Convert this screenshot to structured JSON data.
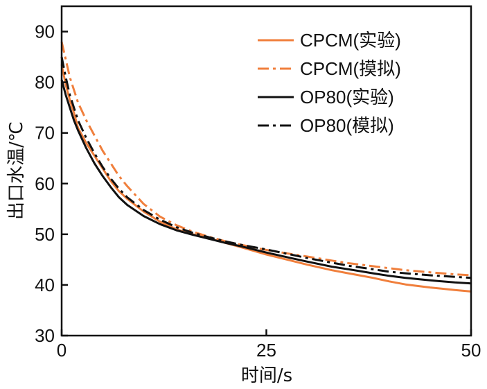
{
  "chart_data": {
    "type": "line",
    "title": "",
    "xlabel": "时间/s",
    "ylabel": "出口水温/℃",
    "xlim": [
      0,
      50
    ],
    "ylim": [
      30,
      95
    ],
    "xticks": [
      0,
      25,
      50
    ],
    "yticks": [
      30,
      40,
      50,
      60,
      70,
      80,
      90
    ],
    "xtick_labels": [
      "0",
      "25",
      "50"
    ],
    "ytick_labels": [
      "30",
      "40",
      "50",
      "60",
      "70",
      "80",
      "90"
    ],
    "legend_position": "top-right",
    "colors": {
      "orange": "#f07f3c",
      "black": "#111111"
    },
    "series": [
      {
        "name": "CPCM(实验)",
        "color": "#f07f3c",
        "dash": "solid",
        "x": [
          0,
          0.5,
          1,
          1.5,
          2,
          3,
          4,
          5,
          6,
          7,
          8,
          10,
          12,
          14,
          16,
          18,
          20,
          22,
          25,
          28,
          30,
          33,
          35,
          38,
          40,
          42,
          45,
          48,
          50
        ],
        "y": [
          83.5,
          79.5,
          76.5,
          74.0,
          71.0,
          68.0,
          65.5,
          63.0,
          60.5,
          58.5,
          57.0,
          54.5,
          52.5,
          51.0,
          50.0,
          49.2,
          48.3,
          47.4,
          46.0,
          44.8,
          44.0,
          42.9,
          42.3,
          41.4,
          40.7,
          40.1,
          39.5,
          39.0,
          38.7
        ]
      },
      {
        "name": "CPCM(摸拟)",
        "color": "#f07f3c",
        "dash": "dashdot",
        "x": [
          0,
          0.5,
          1,
          1.5,
          2,
          3,
          4,
          5,
          6,
          7,
          8,
          10,
          12,
          14,
          16,
          18,
          20,
          22,
          25,
          28,
          30,
          33,
          35,
          38,
          40,
          42,
          45,
          48,
          50
        ],
        "y": [
          88.0,
          84.5,
          81.0,
          78.5,
          76.0,
          72.5,
          69.5,
          66.5,
          64.0,
          61.5,
          59.5,
          56.0,
          53.5,
          51.8,
          50.5,
          49.5,
          48.6,
          47.9,
          46.9,
          46.1,
          45.6,
          44.8,
          44.3,
          43.7,
          43.3,
          42.9,
          42.5,
          42.1,
          41.9
        ]
      },
      {
        "name": "OP80(实验)",
        "color": "#111111",
        "dash": "solid",
        "x": [
          0,
          0.5,
          1,
          1.5,
          2,
          3,
          4,
          5,
          6,
          7,
          8,
          10,
          12,
          14,
          16,
          18,
          20,
          22,
          25,
          28,
          30,
          33,
          35,
          38,
          40,
          42,
          45,
          48,
          50
        ],
        "y": [
          80.5,
          77.5,
          75.0,
          72.5,
          70.5,
          67.0,
          64.0,
          61.5,
          59.3,
          57.3,
          55.8,
          53.6,
          52.0,
          50.8,
          49.9,
          49.1,
          48.3,
          47.6,
          46.4,
          45.3,
          44.6,
          43.6,
          43.1,
          42.3,
          41.8,
          41.4,
          40.9,
          40.5,
          40.3
        ]
      },
      {
        "name": "OP80(模拟)",
        "color": "#111111",
        "dash": "dashdot",
        "x": [
          0,
          0.5,
          1,
          1.5,
          2,
          3,
          4,
          5,
          6,
          7,
          8,
          10,
          12,
          14,
          16,
          18,
          20,
          22,
          25,
          28,
          30,
          33,
          35,
          38,
          40,
          42,
          45,
          48,
          50
        ],
        "y": [
          85.0,
          81.0,
          77.5,
          75.0,
          72.5,
          69.0,
          66.0,
          63.3,
          61.0,
          59.0,
          57.3,
          54.8,
          52.9,
          51.4,
          50.3,
          49.4,
          48.6,
          47.9,
          47.0,
          46.0,
          45.3,
          44.4,
          43.8,
          43.1,
          42.6,
          42.3,
          41.9,
          41.6,
          41.4
        ]
      }
    ]
  }
}
